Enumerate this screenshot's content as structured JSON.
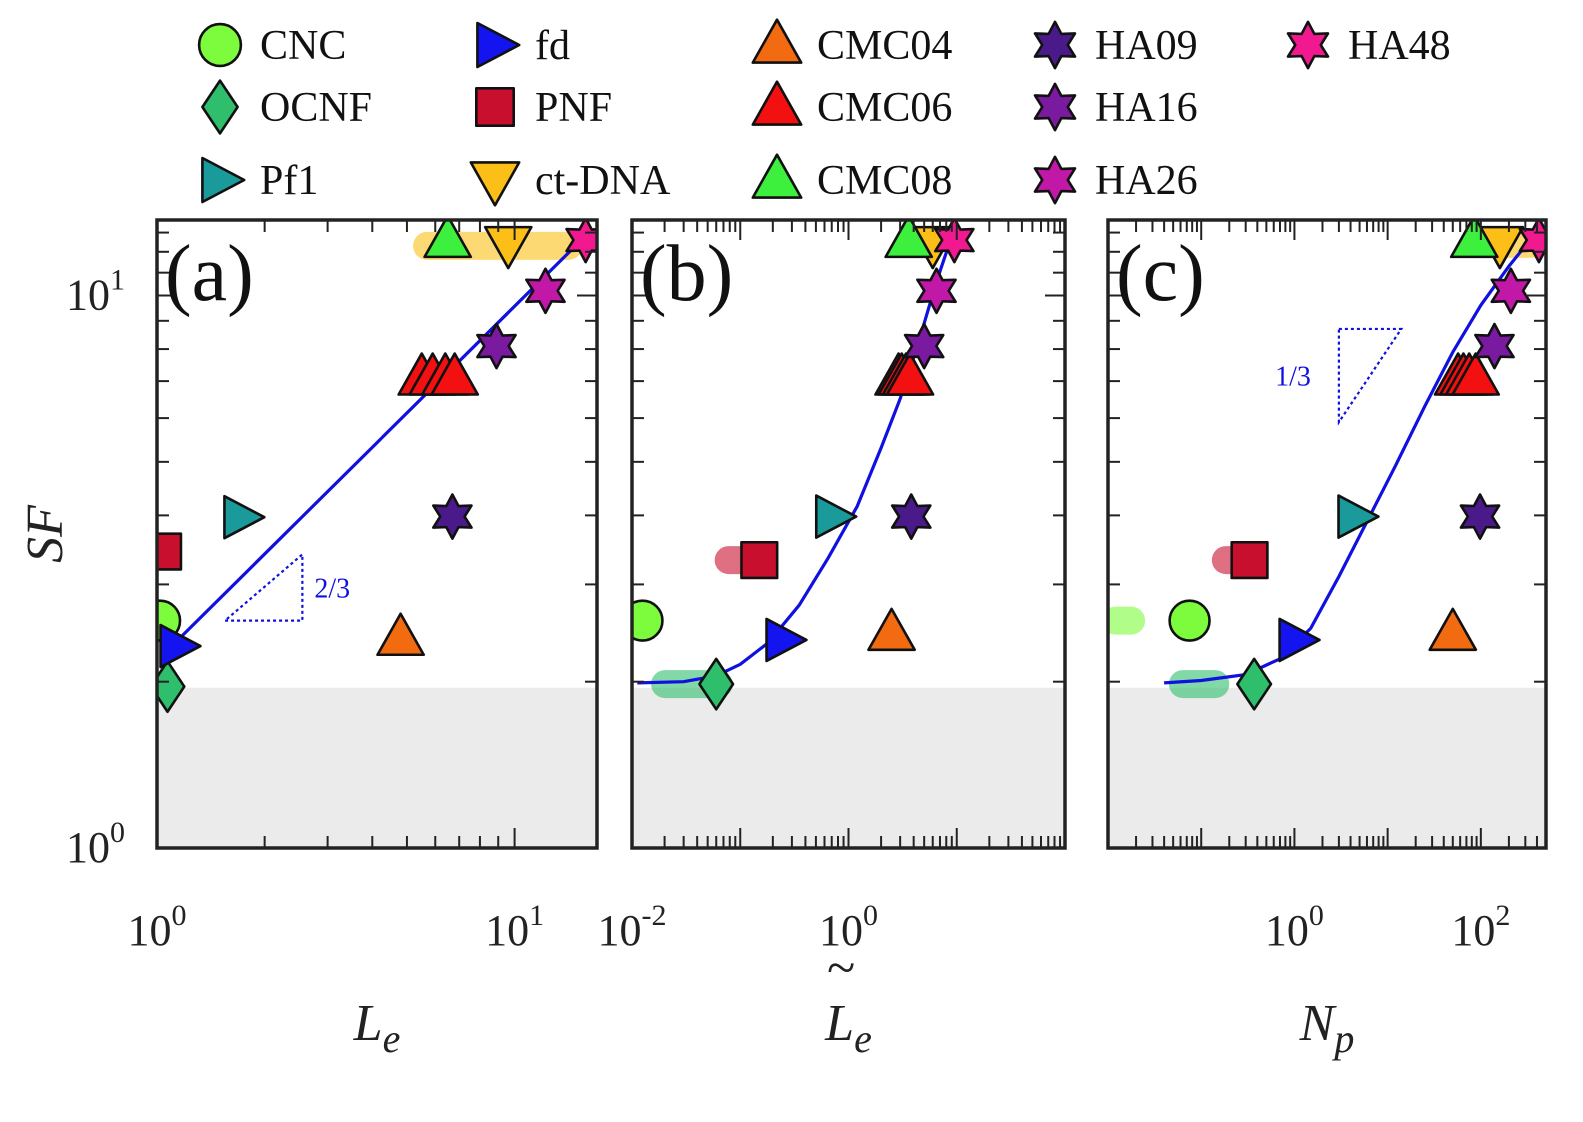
{
  "chart_data": {
    "type": "scatter",
    "legend": [
      {
        "name": "CNC",
        "marker": "circle",
        "color": "#7cfc3c"
      },
      {
        "name": "OCNF",
        "marker": "diamond",
        "color": "#2fbf6c"
      },
      {
        "name": "Pf1",
        "marker": "triangle-right",
        "color": "#1a9a9a"
      },
      {
        "name": "fd",
        "marker": "triangle-right",
        "color": "#1414f0"
      },
      {
        "name": "PNF",
        "marker": "square",
        "color": "#c8102e"
      },
      {
        "name": "ct-DNA",
        "marker": "triangle-down",
        "color": "#fbbf18"
      },
      {
        "name": "CMC04",
        "marker": "triangle-up",
        "color": "#f26b10"
      },
      {
        "name": "CMC06",
        "marker": "triangle-up",
        "color": "#f21010"
      },
      {
        "name": "CMC08",
        "marker": "triangle-up",
        "color": "#3ef03e"
      },
      {
        "name": "HA09",
        "marker": "hexagram",
        "color": "#4b1a8a"
      },
      {
        "name": "HA16",
        "marker": "hexagram",
        "color": "#7a1aa0"
      },
      {
        "name": "HA26",
        "marker": "hexagram",
        "color": "#c218a8"
      },
      {
        "name": "HA48",
        "marker": "hexagram",
        "color": "#f21890"
      }
    ],
    "y_axis": {
      "label": "SF",
      "scale": "log",
      "range": [
        1,
        13.7
      ],
      "tick_labels": [
        {
          "value": 1,
          "base": "10",
          "exp": "0"
        },
        {
          "value": 10,
          "base": "10",
          "exp": "1"
        }
      ]
    },
    "panels": [
      {
        "tag": "(a)",
        "xlabel": "L",
        "xlabel_sub": "e",
        "xlabel_tilde": false,
        "x_scale": "log",
        "xlim": [
          1,
          17
        ],
        "tick_labels": [
          {
            "value": 1,
            "base": "10",
            "exp": "0"
          },
          {
            "value": 10,
            "base": "10",
            "exp": "1"
          }
        ],
        "fit_line": [
          [
            1.07,
            2.28
          ],
          [
            14.8,
            12.3
          ]
        ],
        "slope_label": "2/3",
        "slope_triangle": {
          "x0": 1.55,
          "x1": 2.55,
          "y0": 2.58,
          "y1": 3.4
        },
        "bands": [
          {
            "x0": 5.2,
            "x1": 15.5,
            "y": 12.3,
            "color": "#fbbf18"
          }
        ],
        "points": [
          {
            "series": "CNC",
            "x": 1.02,
            "y": 2.58,
            "err": 0.07
          },
          {
            "series": "OCNF",
            "x": 1.07,
            "y": 1.96,
            "err": 0.05
          },
          {
            "series": "Pf1",
            "x": 1.72,
            "y": 3.97,
            "err": 0.12
          },
          {
            "series": "fd",
            "x": 1.14,
            "y": 2.32,
            "err": 0.08
          },
          {
            "series": "PNF",
            "x": 1.04,
            "y": 3.44,
            "err": 0.15
          },
          {
            "series": "ct-DNA",
            "x": 9.6,
            "y": 12.4,
            "err": 0.9
          },
          {
            "series": "CMC04",
            "x": 4.8,
            "y": 2.4,
            "err": 0.1
          },
          {
            "series": "CMC06",
            "x": 5.5,
            "y": 7.1,
            "err": 0.3
          },
          {
            "series": "CMC06",
            "x": 5.9,
            "y": 7.1,
            "err": 0.3
          },
          {
            "series": "CMC06",
            "x": 6.4,
            "y": 7.1,
            "err": 0.3
          },
          {
            "series": "CMC06",
            "x": 6.8,
            "y": 7.1,
            "err": 0.3
          },
          {
            "series": "CMC08",
            "x": 6.5,
            "y": 12.6,
            "err": 0.6
          },
          {
            "series": "HA09",
            "x": 6.7,
            "y": 3.98,
            "err": 0.2
          },
          {
            "series": "HA16",
            "x": 8.9,
            "y": 8.1,
            "err": 0.3
          },
          {
            "series": "HA26",
            "x": 12.2,
            "y": 10.2,
            "err": 0.4
          },
          {
            "series": "HA48",
            "x": 15.8,
            "y": 12.6,
            "err": 0.5
          }
        ]
      },
      {
        "tag": "(b)",
        "xlabel": "L",
        "xlabel_sub": "e",
        "xlabel_tilde": true,
        "x_scale": "log",
        "xlim": [
          0.01,
          100
        ],
        "tick_labels": [
          {
            "value": 0.01,
            "base": "10",
            "exp": "-2"
          },
          {
            "value": 1,
            "base": "10",
            "exp": "0"
          }
        ],
        "fit_curve": [
          [
            0.0112,
            1.99
          ],
          [
            0.03,
            2.0
          ],
          [
            0.06,
            2.05
          ],
          [
            0.1,
            2.15
          ],
          [
            0.18,
            2.35
          ],
          [
            0.35,
            2.75
          ],
          [
            0.65,
            3.35
          ],
          [
            1.2,
            4.15
          ],
          [
            2.0,
            5.3
          ],
          [
            3.0,
            6.5
          ],
          [
            4.5,
            8.3
          ],
          [
            6.5,
            10.6
          ],
          [
            9.0,
            12.8
          ]
        ],
        "bands": [
          {
            "x0": 0.015,
            "x1": 0.085,
            "y": 1.98,
            "color": "#2fbf6c"
          },
          {
            "x0": 0.058,
            "x1": 0.16,
            "y": 3.32,
            "color": "#c8102e"
          },
          {
            "x0": 8.0,
            "x1": 10.5,
            "y": 12.4,
            "color": "#f26b10"
          }
        ],
        "points": [
          {
            "series": "CNC",
            "x": 0.0125,
            "y": 2.58,
            "err": 0.07
          },
          {
            "series": "OCNF",
            "x": 0.06,
            "y": 1.98,
            "err": 0.05
          },
          {
            "series": "Pf1",
            "x": 0.72,
            "y": 3.98,
            "err": 0.12
          },
          {
            "series": "fd",
            "x": 0.25,
            "y": 2.38,
            "err": 0.08
          },
          {
            "series": "PNF",
            "x": 0.15,
            "y": 3.32,
            "err": 0.15
          },
          {
            "series": "ct-DNA",
            "x": 6.0,
            "y": 12.4,
            "err": 0.9
          },
          {
            "series": "CMC04",
            "x": 2.5,
            "y": 2.45,
            "err": 0.1
          },
          {
            "series": "CMC06",
            "x": 2.9,
            "y": 7.1,
            "err": 0.3
          },
          {
            "series": "CMC06",
            "x": 3.1,
            "y": 7.1,
            "err": 0.3
          },
          {
            "series": "CMC06",
            "x": 3.4,
            "y": 7.1,
            "err": 0.3
          },
          {
            "series": "CMC06",
            "x": 3.7,
            "y": 7.1,
            "err": 0.3
          },
          {
            "series": "CMC08",
            "x": 3.6,
            "y": 12.6,
            "err": 0.6
          },
          {
            "series": "HA09",
            "x": 3.8,
            "y": 3.98,
            "err": 0.2
          },
          {
            "series": "HA16",
            "x": 5.0,
            "y": 8.1,
            "err": 0.3
          },
          {
            "series": "HA26",
            "x": 6.5,
            "y": 10.2,
            "err": 0.4
          },
          {
            "series": "HA48",
            "x": 9.5,
            "y": 12.6,
            "err": 0.5
          }
        ]
      },
      {
        "tag": "(c)",
        "xlabel": "N",
        "xlabel_sub": "p",
        "xlabel_tilde": false,
        "x_scale": "log",
        "xlim": [
          0.01,
          500
        ],
        "tick_labels": [
          {
            "value": 1,
            "base": "10",
            "exp": "0"
          },
          {
            "value": 100,
            "base": "10",
            "exp": "2"
          }
        ],
        "fit_curve": [
          [
            0.04,
            1.99
          ],
          [
            0.1,
            2.01
          ],
          [
            0.3,
            2.06
          ],
          [
            0.7,
            2.2
          ],
          [
            1.5,
            2.5
          ],
          [
            3.0,
            3.1
          ],
          [
            6.0,
            3.9
          ],
          [
            12.0,
            4.9
          ],
          [
            25.0,
            6.3
          ],
          [
            50.0,
            7.9
          ],
          [
            100.0,
            9.6
          ],
          [
            200.0,
            11.3
          ],
          [
            300.0,
            12.3
          ]
        ],
        "slope_label": "1/3",
        "slope_triangle": {
          "x0": 3.0,
          "x1": 14.0,
          "y0": 5.9,
          "y1": 8.7
        },
        "bands": [
          {
            "x0": 0.045,
            "x1": 0.2,
            "y": 1.98,
            "color": "#2fbf6c"
          },
          {
            "x0": 0.13,
            "x1": 0.3,
            "y": 3.32,
            "color": "#c8102e"
          },
          {
            "x0": 0.0085,
            "x1": 0.025,
            "y": 2.58,
            "color": "#7cfc3c"
          },
          {
            "x0": 100.0,
            "x1": 480.0,
            "y": 12.4,
            "color": "#fbbf18"
          }
        ],
        "points": [
          {
            "series": "CNC",
            "x": 0.075,
            "y": 2.58,
            "err": 0.07
          },
          {
            "series": "OCNF",
            "x": 0.37,
            "y": 1.98,
            "err": 0.05
          },
          {
            "series": "Pf1",
            "x": 4.5,
            "y": 3.98,
            "err": 0.12
          },
          {
            "series": "fd",
            "x": 1.05,
            "y": 2.38,
            "err": 0.08
          },
          {
            "series": "PNF",
            "x": 0.33,
            "y": 3.32,
            "err": 0.15
          },
          {
            "series": "ct-DNA",
            "x": 160,
            "y": 12.4,
            "err": 0.9
          },
          {
            "series": "CMC04",
            "x": 50,
            "y": 2.45,
            "err": 0.1
          },
          {
            "series": "CMC06",
            "x": 57,
            "y": 7.1,
            "err": 0.3
          },
          {
            "series": "CMC06",
            "x": 65,
            "y": 7.1,
            "err": 0.3
          },
          {
            "series": "CMC06",
            "x": 75,
            "y": 7.1,
            "err": 0.3
          },
          {
            "series": "CMC06",
            "x": 88,
            "y": 7.1,
            "err": 0.3
          },
          {
            "series": "CMC08",
            "x": 85,
            "y": 12.6,
            "err": 0.6
          },
          {
            "series": "HA09",
            "x": 98,
            "y": 3.98,
            "err": 0.2
          },
          {
            "series": "HA16",
            "x": 140,
            "y": 8.1,
            "err": 0.3
          },
          {
            "series": "HA26",
            "x": 210,
            "y": 10.2,
            "err": 0.4
          },
          {
            "series": "HA48",
            "x": 420,
            "y": 12.6,
            "err": 0.5
          }
        ]
      }
    ]
  }
}
